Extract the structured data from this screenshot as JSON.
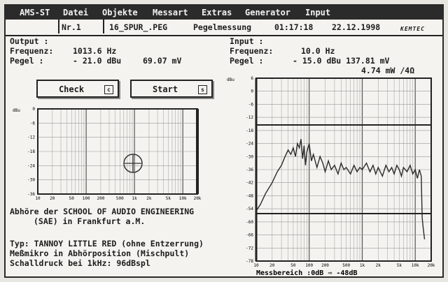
{
  "menu": [
    "AMS-ST",
    "Datei",
    "Objekte",
    "Messart",
    "Extras",
    "Generator",
    "Input"
  ],
  "infobar": {
    "nr": "Nr.1",
    "file": "16_SPUR_.PEG",
    "mode": "Pegelmessung",
    "time": "01:17:18",
    "date": "22.12.1998",
    "logo": "KEMTEC"
  },
  "output": {
    "header": "Output  :",
    "freq_label": "Frequenz:",
    "freq_value": "1013.6 Hz",
    "level_label": "Pegel   :",
    "level_value": "- 21.0 dBu",
    "level_mv": "69.07 mV"
  },
  "input": {
    "header": "Input   :",
    "freq_label": "Frequenz:",
    "freq_value": "10.0 Hz",
    "level_label": "Pegel   :",
    "level_value": "- 15.0 dBu 137.81 mV",
    "power": "4.74 mW /4Ω"
  },
  "buttons": {
    "check": {
      "label": "Check",
      "key": "c"
    },
    "start": {
      "label": "Start",
      "key": "s"
    }
  },
  "left_chart": {
    "unit": "dBu",
    "yticks": [
      "0",
      "-6",
      "-12",
      "-18",
      "-24",
      "-30",
      "-36"
    ],
    "xticks": [
      "10",
      "20",
      "50",
      "100",
      "200",
      "500",
      "1k",
      "2k",
      "5k",
      "10k",
      "20k"
    ]
  },
  "right_chart": {
    "unit": "dBu",
    "yticks": [
      "6",
      "0",
      "-6",
      "-12",
      "-18",
      "-24",
      "-30",
      "-36",
      "-42",
      "-48",
      "-54",
      "-60",
      "-66",
      "-72",
      "-78"
    ],
    "xticks": [
      "10",
      "20",
      "50",
      "100",
      "200",
      "500",
      "1k",
      "2k",
      "5k",
      "10k",
      "20k"
    ],
    "range_label": "Messbereich :0dB ⇨ -48dB"
  },
  "info_text": {
    "line1": "Abhöre der SCHOOL OF AUDIO ENGINEERING",
    "line2": "(SAE) in Frankfurt a.M.",
    "line3": "Typ: TANNOY LITTLE RED (ohne Entzerrung)",
    "line4": "Meßmikro in Abhörposition (Mischpult)",
    "line5": "Schalldruck bei 1kHz: 96dBspl"
  }
}
